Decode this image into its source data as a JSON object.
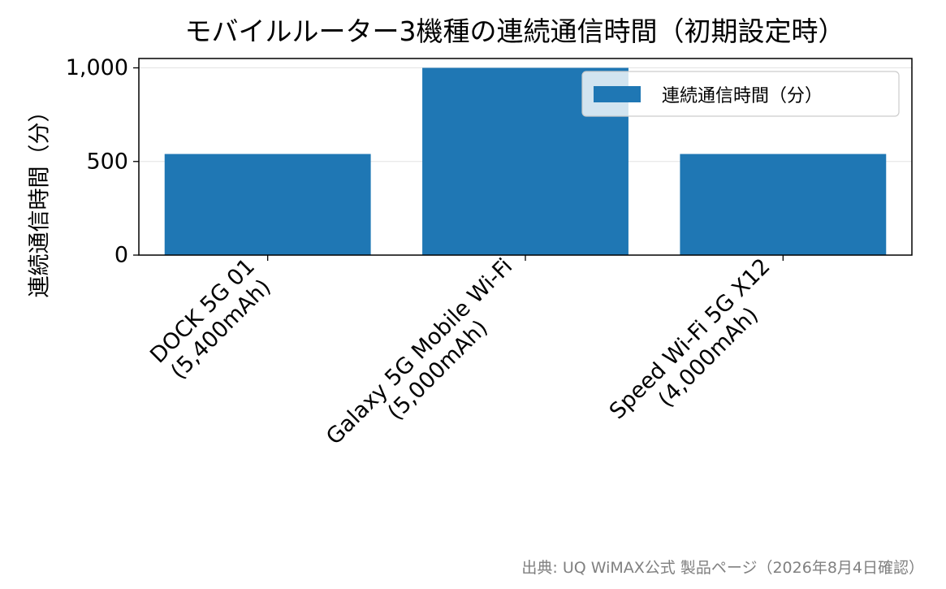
{
  "chart_data": {
    "type": "bar",
    "title": "モバイルルーター3機種の連続通信時間（初期設定時）",
    "ylabel": "連続通信時間（分）",
    "xlabel": "",
    "categories": [
      [
        "DOCK 5G 01",
        "(5,400mAh)"
      ],
      [
        "Galaxy 5G Mobile Wi-Fi",
        "(5,000mAh)"
      ],
      [
        "Speed Wi-Fi 5G X12",
        "(4,000mAh)"
      ]
    ],
    "series": [
      {
        "name": "連続通信時間（分）",
        "values": [
          540,
          1000,
          540
        ],
        "color": "#1f77b4"
      }
    ],
    "ylim": [
      0,
      1050
    ],
    "yticks": [
      0,
      500,
      1000
    ],
    "ytick_labels": [
      "0",
      "500",
      "1,000"
    ],
    "grid": "y",
    "legend_position": "top-right"
  },
  "source_note": "出典: UQ WiMAX公式 製品ページ（2026年8月4日確認）"
}
